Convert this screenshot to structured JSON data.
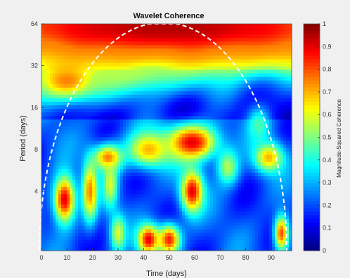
{
  "chart_data": {
    "type": "heatmap",
    "title": "Wavelet Coherence",
    "xlabel": "Time (days)",
    "ylabel": "Period (days)",
    "colorbar_label": "Magnitude-Squared Coherence",
    "xlim": [
      0,
      98
    ],
    "ylim_period": [
      1.5,
      64
    ],
    "y_scale": "log2",
    "x_ticks": [
      0,
      10,
      20,
      30,
      40,
      50,
      60,
      70,
      80,
      90
    ],
    "y_ticks": [
      4,
      8,
      16,
      32,
      64
    ],
    "colorbar_range": [
      0,
      1
    ],
    "colorbar_ticks": [
      0,
      0.1,
      0.2,
      0.3,
      0.4,
      0.5,
      0.6,
      0.7,
      0.8,
      0.9,
      1
    ],
    "colormap": "jet",
    "cone_of_influence": "white dashed line",
    "high_coherence_regions": [
      {
        "time": 49,
        "period": 60,
        "coherence": 0.95,
        "t_width": 80,
        "p_width": 0.7
      },
      {
        "time": 49,
        "period": 50,
        "coherence": 0.75,
        "t_width": 80,
        "p_width": 0.5
      },
      {
        "time": 10,
        "period": 25,
        "coherence": 0.75,
        "t_width": 9,
        "p_width": 0.35
      },
      {
        "time": 30,
        "period": 30,
        "coherence": 0.55,
        "t_width": 20,
        "p_width": 0.4
      },
      {
        "time": 59,
        "period": 9,
        "coherence": 0.9,
        "t_width": 7,
        "p_width": 0.3
      },
      {
        "time": 42,
        "period": 8,
        "coherence": 0.7,
        "t_width": 6,
        "p_width": 0.3
      },
      {
        "time": 26,
        "period": 7,
        "coherence": 0.75,
        "t_width": 4,
        "p_width": 0.22
      },
      {
        "time": 89,
        "period": 7,
        "coherence": 0.7,
        "t_width": 4,
        "p_width": 0.25
      },
      {
        "time": 9,
        "period": 3.5,
        "coherence": 0.9,
        "t_width": 3,
        "p_width": 0.4
      },
      {
        "time": 19,
        "period": 4,
        "coherence": 0.75,
        "t_width": 2,
        "p_width": 0.5
      },
      {
        "time": 59,
        "period": 4,
        "coherence": 0.9,
        "t_width": 3,
        "p_width": 0.35
      },
      {
        "time": 27,
        "period": 4.5,
        "coherence": 0.6,
        "t_width": 2,
        "p_width": 0.4
      },
      {
        "time": 42,
        "period": 1.8,
        "coherence": 0.9,
        "t_width": 3,
        "p_width": 0.25
      },
      {
        "time": 50,
        "period": 1.8,
        "coherence": 0.85,
        "t_width": 3,
        "p_width": 0.25
      },
      {
        "time": 30,
        "period": 2,
        "coherence": 0.6,
        "t_width": 2,
        "p_width": 0.3
      },
      {
        "time": 85,
        "period": 12,
        "coherence": 0.45,
        "t_width": 3,
        "p_width": 0.3
      },
      {
        "time": 73,
        "period": 6,
        "coherence": 0.55,
        "t_width": 3,
        "p_width": 0.3
      },
      {
        "time": 94,
        "period": 2,
        "coherence": 0.8,
        "t_width": 2,
        "p_width": 0.3
      }
    ]
  }
}
